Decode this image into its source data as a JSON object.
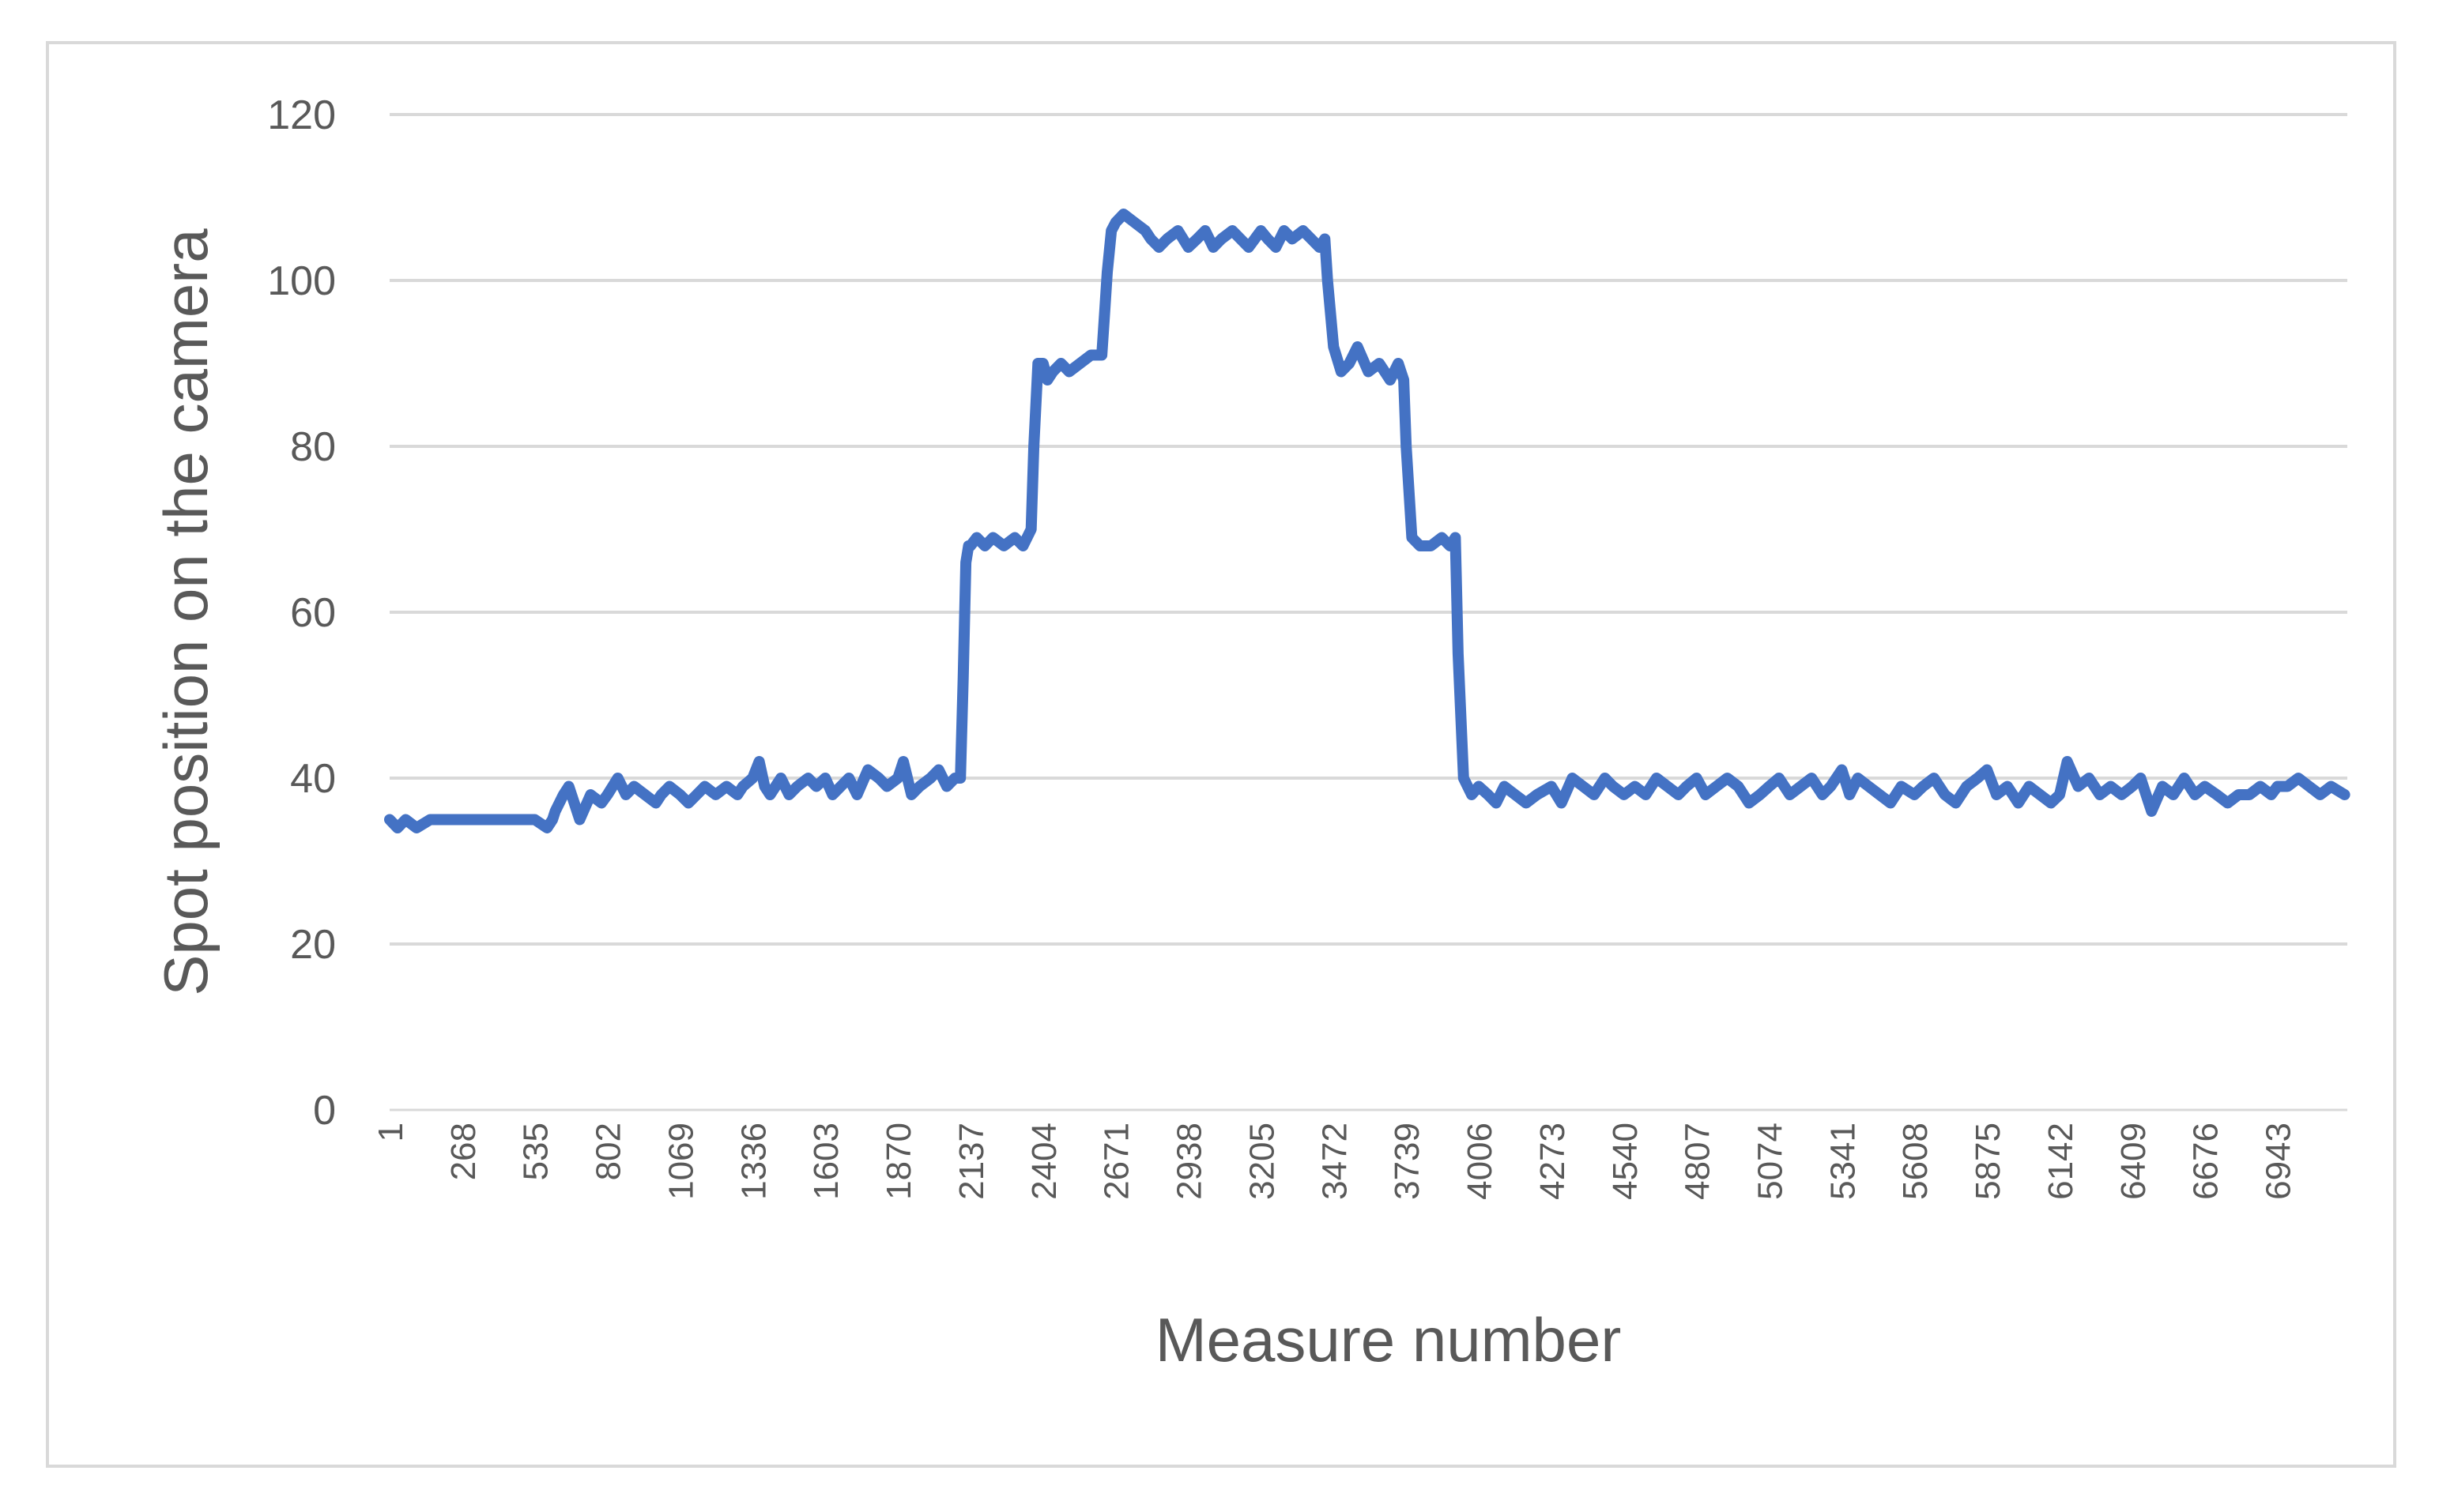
{
  "chart_data": {
    "type": "line",
    "title": "",
    "xlabel": "Measure number",
    "ylabel": "Spot position on the camera",
    "ylim": [
      0,
      120
    ],
    "y_ticks": [
      "0",
      "20",
      "40",
      "60",
      "80",
      "100",
      "120"
    ],
    "x_ticks": [
      "1",
      "268",
      "535",
      "802",
      "1069",
      "1336",
      "1603",
      "1870",
      "2137",
      "2404",
      "2671",
      "2938",
      "3205",
      "3472",
      "3739",
      "4006",
      "4273",
      "4540",
      "4807",
      "5074",
      "5341",
      "5608",
      "5875",
      "6142",
      "6409",
      "6676",
      "6943"
    ],
    "grid": true,
    "legend": "none",
    "color": "#4472c4",
    "series": [
      {
        "name": "",
        "x": [
          1,
          30,
          60,
          100,
          150,
          268,
          400,
          535,
          580,
          600,
          610,
          640,
          660,
          700,
          740,
          780,
          802,
          840,
          870,
          900,
          940,
          980,
          1000,
          1030,
          1069,
          1100,
          1130,
          1160,
          1200,
          1240,
          1280,
          1300,
          1336,
          1360,
          1380,
          1400,
          1440,
          1470,
          1500,
          1540,
          1570,
          1603,
          1630,
          1660,
          1690,
          1720,
          1760,
          1800,
          1830,
          1870,
          1890,
          1920,
          1950,
          1990,
          2020,
          2050,
          2080,
          2100,
          2110,
          2120,
          2130,
          2137,
          2160,
          2190,
          2220,
          2260,
          2300,
          2330,
          2360,
          2370,
          2385,
          2404,
          2420,
          2440,
          2470,
          2500,
          2540,
          2580,
          2620,
          2630,
          2640,
          2655,
          2671,
          2700,
          2740,
          2780,
          2800,
          2830,
          2860,
          2900,
          2938,
          2970,
          3000,
          3030,
          3060,
          3100,
          3130,
          3160,
          3205,
          3230,
          3260,
          3290,
          3320,
          3360,
          3390,
          3420,
          3440,
          3450,
          3472,
          3500,
          3530,
          3560,
          3600,
          3640,
          3680,
          3710,
          3720,
          3730,
          3739,
          3760,
          3790,
          3830,
          3870,
          3900,
          3920,
          3930,
          3950,
          3980,
          4006,
          4040,
          4070,
          4100,
          4140,
          4180,
          4220,
          4273,
          4310,
          4350,
          4390,
          4430,
          4470,
          4500,
          4540,
          4580,
          4620,
          4660,
          4700,
          4740,
          4770,
          4807,
          4840,
          4880,
          4920,
          4960,
          5000,
          5040,
          5074,
          5110,
          5150,
          5190,
          5230,
          5270,
          5300,
          5341,
          5370,
          5400,
          5440,
          5480,
          5520,
          5560,
          5608,
          5640,
          5680,
          5720,
          5760,
          5800,
          5840,
          5875,
          5910,
          5950,
          5990,
          6030,
          6070,
          6110,
          6142,
          6170,
          6210,
          6250,
          6290,
          6330,
          6370,
          6409,
          6440,
          6480,
          6520,
          6560,
          6600,
          6640,
          6676,
          6720,
          6760,
          6800,
          6840,
          6880,
          6920,
          6943,
          6980,
          7020,
          7060,
          7100,
          7140,
          7190
        ],
        "values": [
          35,
          34,
          35,
          34,
          35,
          35,
          35,
          35,
          34,
          35,
          36,
          38,
          39,
          35,
          38,
          37,
          38,
          40,
          38,
          39,
          38,
          37,
          38,
          39,
          38,
          37,
          38,
          39,
          38,
          39,
          38,
          39,
          40,
          42,
          39,
          38,
          40,
          38,
          39,
          40,
          39,
          40,
          38,
          39,
          40,
          38,
          41,
          40,
          39,
          40,
          42,
          38,
          39,
          40,
          41,
          39,
          40,
          40,
          52,
          66,
          68,
          68,
          69,
          68,
          69,
          68,
          69,
          68,
          70,
          80,
          90,
          90,
          88,
          89,
          90,
          89,
          90,
          91,
          91,
          96,
          101,
          106,
          107,
          108,
          107,
          106,
          105,
          104,
          105,
          106,
          104,
          105,
          106,
          104,
          105,
          106,
          105,
          104,
          106,
          105,
          104,
          106,
          105,
          106,
          105,
          104,
          105,
          100,
          92,
          89,
          90,
          92,
          89,
          90,
          88,
          90,
          89,
          88,
          80,
          69,
          68,
          68,
          69,
          68,
          69,
          55,
          40,
          38,
          39,
          38,
          37,
          39,
          38,
          37,
          38,
          39,
          37,
          40,
          39,
          38,
          40,
          39,
          38,
          39,
          38,
          40,
          39,
          38,
          39,
          40,
          38,
          39,
          40,
          39,
          37,
          38,
          39,
          40,
          38,
          39,
          40,
          38,
          39,
          41,
          38,
          40,
          39,
          38,
          37,
          39,
          38,
          39,
          40,
          38,
          37,
          39,
          40,
          41,
          38,
          39,
          37,
          39,
          38,
          37,
          38,
          42,
          39,
          40,
          38,
          39,
          38,
          39,
          40,
          36,
          39,
          38,
          40,
          38,
          39,
          38,
          37,
          38,
          38,
          39,
          38,
          39,
          39,
          40,
          39,
          38,
          39,
          38
        ]
      }
    ]
  }
}
